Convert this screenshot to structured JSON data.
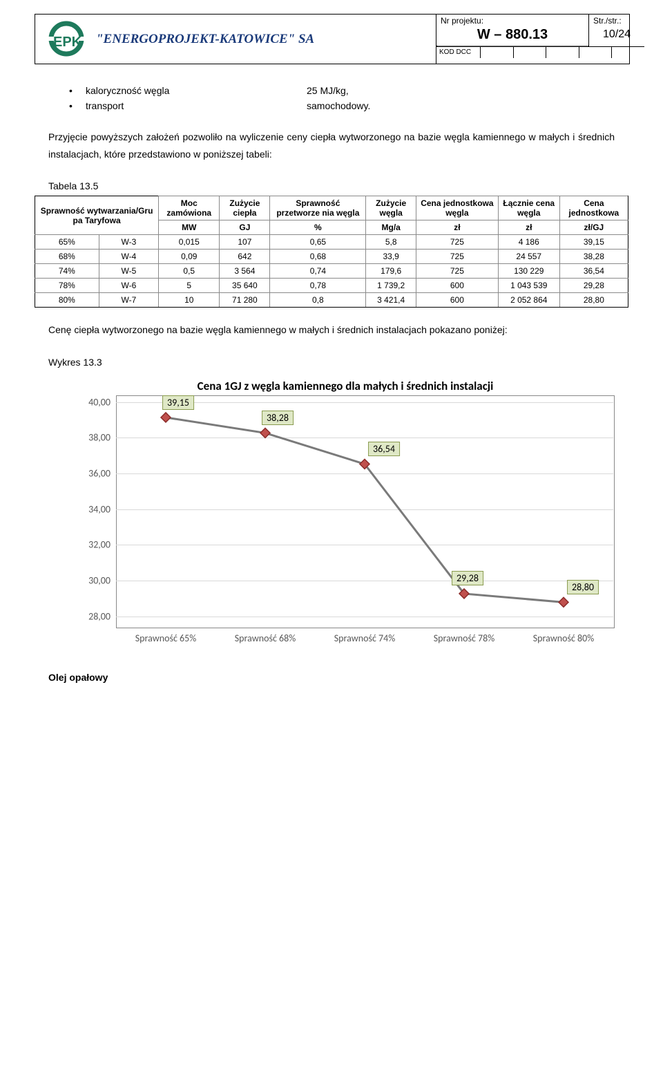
{
  "header": {
    "company_name": "\"ENERGOPROJEKT-KATOWICE\" SA",
    "proj_label": "Nr projektu:",
    "proj_value": "W – 880.13",
    "str_label": "Str./str.:",
    "str_value": "10/24",
    "kod_label": "KOD DCC",
    "logo_color1": "#1e7a5c",
    "logo_color2": "#2a5599"
  },
  "bullets": [
    {
      "label": "kaloryczność węgla",
      "value": "25 MJ/kg,"
    },
    {
      "label": "transport",
      "value": "samochodowy."
    }
  ],
  "para1": "Przyjęcie powyższych założeń pozwoliło na wyliczenie ceny ciepła wytworzonego na bazie węgla kamiennego w małych i średnich instalacjach, które przedstawiono w poniższej tabeli:",
  "table_label": "Tabela 13.5",
  "table": {
    "header_row1": [
      "Sprawność wytwarzania/Gru pa Taryfowa",
      "Moc zamówiona",
      "Zużycie ciepła",
      "Sprawność przetworze nia węgla",
      "Zużycie węgla",
      "Cena jednostkowa węgla",
      "Łącznie cena węgla",
      "Cena jednostkowa"
    ],
    "header_row2": [
      "MW",
      "GJ",
      "%",
      "Mg/a",
      "zł",
      "zł",
      "zł/GJ"
    ],
    "rows": [
      [
        "65%",
        "W-3",
        "0,015",
        "107",
        "0,65",
        "5,8",
        "725",
        "4 186",
        "39,15"
      ],
      [
        "68%",
        "W-4",
        "0,09",
        "642",
        "0,68",
        "33,9",
        "725",
        "24 557",
        "38,28"
      ],
      [
        "74%",
        "W-5",
        "0,5",
        "3 564",
        "0,74",
        "179,6",
        "725",
        "130 229",
        "36,54"
      ],
      [
        "78%",
        "W-6",
        "5",
        "35 640",
        "0,78",
        "1 739,2",
        "600",
        "1 043 539",
        "29,28"
      ],
      [
        "80%",
        "W-7",
        "10",
        "71 280",
        "0,8",
        "3 421,4",
        "600",
        "2 052 864",
        "28,80"
      ]
    ]
  },
  "para2": "Cenę ciepła wytworzonego na bazie węgla kamiennego w małych i średnich instalacjach pokazano poniżej:",
  "chart_label": "Wykres 13.3",
  "chart": {
    "title": "Cena 1GJ z węgla  kamiennego dla małych i średnich instalacji",
    "type": "line",
    "x_categories": [
      "Sprawność 65%",
      "Sprawność 68%",
      "Sprawność 74%",
      "Sprawność 78%",
      "Sprawność 80%"
    ],
    "values": [
      39.15,
      38.28,
      36.54,
      29.28,
      28.8
    ],
    "value_labels": [
      "39,15",
      "38,28",
      "36,54",
      "29,28",
      "28,80"
    ],
    "ylim": [
      28.0,
      40.0
    ],
    "ytick_step": 2.0,
    "ytick_labels": [
      "28,00",
      "30,00",
      "32,00",
      "34,00",
      "36,00",
      "38,00",
      "40,00"
    ],
    "line_color": "#7a7a7a",
    "line_width": 3,
    "marker_fill": "#c0504d",
    "marker_stroke": "#8c2c2a",
    "marker_size": 14,
    "grid_color": "#d9d9d9",
    "background_color": "#ffffff",
    "border_color": "#888888",
    "label_bg": "#dfe8c6",
    "label_border": "#8a9b4f",
    "title_fontsize": 17,
    "tick_fontsize": 14
  },
  "section_heading": "Olej opałowy"
}
